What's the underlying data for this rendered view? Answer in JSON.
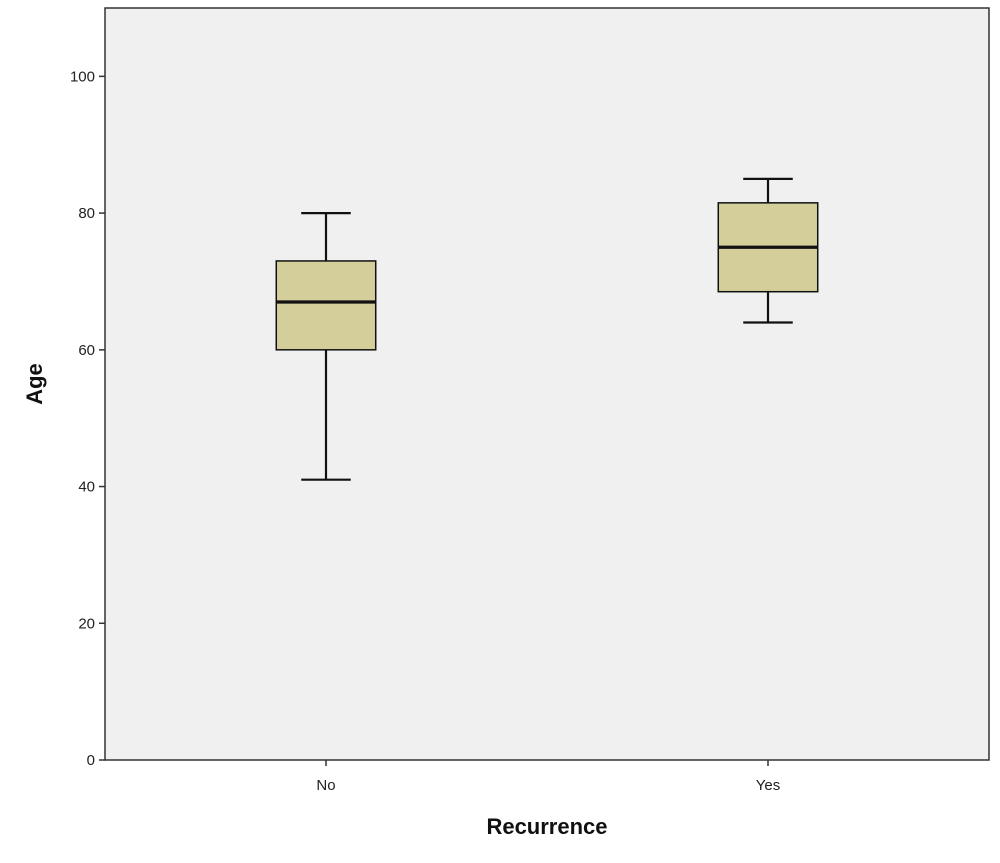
{
  "chart_data": {
    "type": "boxplot",
    "xlabel": "Recurrence",
    "ylabel": "Age",
    "ylim": [
      0,
      110
    ],
    "yticks": [
      0,
      20,
      40,
      60,
      80,
      100
    ],
    "grid": false,
    "categories": [
      "No",
      "Yes"
    ],
    "boxes": [
      {
        "category": "No",
        "whisker_low": 41,
        "q1": 60,
        "median": 67,
        "q3": 73,
        "whisker_high": 80
      },
      {
        "category": "Yes",
        "whisker_low": 64,
        "q1": 68.5,
        "median": 75,
        "q3": 81.5,
        "whisker_high": 85
      }
    ],
    "colors": {
      "plot_background": "#f0f0f0",
      "box_fill": "#d3ce9a",
      "stroke": "#111111"
    }
  }
}
